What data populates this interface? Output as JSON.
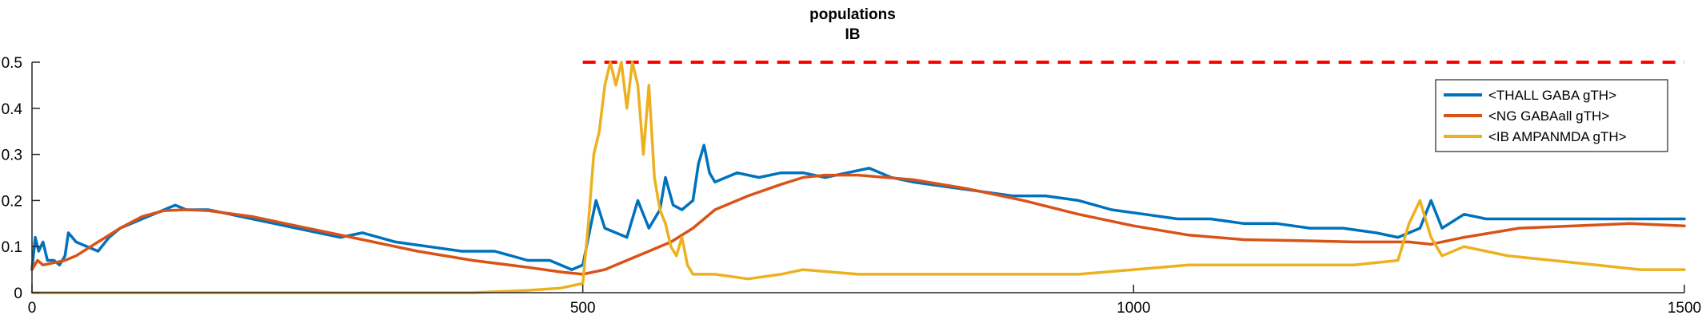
{
  "chart_data": {
    "type": "line",
    "title": "populations",
    "subtitle": "IB",
    "xlabel": "",
    "ylabel": "",
    "xlim": [
      0,
      1500
    ],
    "ylim": [
      0,
      0.5
    ],
    "xticks": [
      0,
      500,
      1000,
      1500
    ],
    "yticks": [
      0,
      0.1,
      0.2,
      0.3,
      0.4,
      0.5
    ],
    "x_tick_labels": [
      "0",
      "500",
      "1000",
      "1500"
    ],
    "y_tick_labels": [
      "0",
      "0.1",
      "0.2",
      "0.3",
      "0.4",
      "0.5"
    ],
    "grid": false,
    "legend_position": "top-right",
    "reference_line": {
      "y": 0.5,
      "x_range": [
        500,
        1500
      ],
      "style": "dashed",
      "color": "#ff0000"
    },
    "series": [
      {
        "name": "<THALL GABA gTH>",
        "color": "#0072BD",
        "x": [
          0,
          3,
          6,
          10,
          14,
          20,
          25,
          30,
          33,
          40,
          50,
          60,
          70,
          80,
          100,
          120,
          130,
          140,
          160,
          180,
          190,
          200,
          220,
          240,
          260,
          280,
          300,
          330,
          360,
          390,
          420,
          450,
          470,
          490,
          500,
          505,
          512,
          520,
          540,
          550,
          560,
          570,
          575,
          582,
          590,
          600,
          605,
          610,
          615,
          620,
          640,
          660,
          680,
          700,
          720,
          740,
          760,
          780,
          800,
          830,
          860,
          890,
          920,
          950,
          980,
          1010,
          1040,
          1070,
          1100,
          1130,
          1160,
          1190,
          1220,
          1240,
          1250,
          1260,
          1270,
          1280,
          1300,
          1320,
          1350,
          1380,
          1410,
          1440,
          1470,
          1495,
          1500
        ],
        "y": [
          0.05,
          0.12,
          0.09,
          0.11,
          0.07,
          0.07,
          0.06,
          0.08,
          0.13,
          0.11,
          0.1,
          0.09,
          0.12,
          0.14,
          0.16,
          0.18,
          0.19,
          0.18,
          0.18,
          0.17,
          0.165,
          0.16,
          0.15,
          0.14,
          0.13,
          0.12,
          0.13,
          0.11,
          0.1,
          0.09,
          0.09,
          0.07,
          0.07,
          0.05,
          0.06,
          0.12,
          0.2,
          0.14,
          0.12,
          0.2,
          0.14,
          0.18,
          0.25,
          0.19,
          0.18,
          0.2,
          0.28,
          0.32,
          0.26,
          0.24,
          0.26,
          0.25,
          0.26,
          0.26,
          0.25,
          0.26,
          0.27,
          0.25,
          0.24,
          0.23,
          0.22,
          0.21,
          0.21,
          0.2,
          0.18,
          0.17,
          0.16,
          0.16,
          0.15,
          0.15,
          0.14,
          0.14,
          0.13,
          0.12,
          0.13,
          0.14,
          0.2,
          0.14,
          0.17,
          0.16,
          0.16,
          0.16,
          0.16,
          0.16,
          0.16,
          0.16,
          0.16
        ]
      },
      {
        "name": "<NG GABAall gTH>",
        "color": "#D95319",
        "x": [
          0,
          5,
          10,
          20,
          30,
          40,
          60,
          80,
          100,
          120,
          140,
          160,
          200,
          250,
          300,
          350,
          400,
          450,
          480,
          500,
          520,
          540,
          560,
          580,
          600,
          620,
          650,
          680,
          700,
          720,
          750,
          800,
          850,
          900,
          950,
          1000,
          1050,
          1100,
          1150,
          1200,
          1250,
          1270,
          1300,
          1350,
          1400,
          1450,
          1500
        ],
        "y": [
          0.05,
          0.07,
          0.06,
          0.065,
          0.07,
          0.08,
          0.11,
          0.14,
          0.165,
          0.178,
          0.18,
          0.178,
          0.165,
          0.14,
          0.115,
          0.09,
          0.07,
          0.055,
          0.045,
          0.04,
          0.05,
          0.07,
          0.09,
          0.11,
          0.14,
          0.18,
          0.21,
          0.235,
          0.25,
          0.255,
          0.255,
          0.245,
          0.225,
          0.2,
          0.17,
          0.145,
          0.125,
          0.115,
          0.113,
          0.11,
          0.11,
          0.105,
          0.12,
          0.14,
          0.145,
          0.15,
          0.145
        ]
      },
      {
        "name": "<IB AMPANMDA gTH>",
        "color": "#EDB120",
        "x": [
          0,
          100,
          200,
          300,
          400,
          450,
          480,
          500,
          505,
          510,
          515,
          520,
          525,
          530,
          535,
          540,
          545,
          550,
          555,
          560,
          565,
          570,
          575,
          580,
          585,
          590,
          595,
          600,
          620,
          650,
          680,
          700,
          750,
          800,
          850,
          900,
          950,
          1000,
          1050,
          1100,
          1150,
          1200,
          1240,
          1250,
          1260,
          1270,
          1280,
          1300,
          1320,
          1340,
          1380,
          1420,
          1460,
          1500
        ],
        "y": [
          0.0,
          0.0,
          0.0,
          0.0,
          0.0,
          0.005,
          0.01,
          0.02,
          0.15,
          0.3,
          0.35,
          0.45,
          0.5,
          0.45,
          0.5,
          0.4,
          0.5,
          0.45,
          0.3,
          0.45,
          0.25,
          0.18,
          0.15,
          0.1,
          0.08,
          0.12,
          0.06,
          0.04,
          0.04,
          0.03,
          0.04,
          0.05,
          0.04,
          0.04,
          0.04,
          0.04,
          0.04,
          0.05,
          0.06,
          0.06,
          0.06,
          0.06,
          0.07,
          0.15,
          0.2,
          0.12,
          0.08,
          0.1,
          0.09,
          0.08,
          0.07,
          0.06,
          0.05,
          0.05
        ]
      }
    ]
  }
}
